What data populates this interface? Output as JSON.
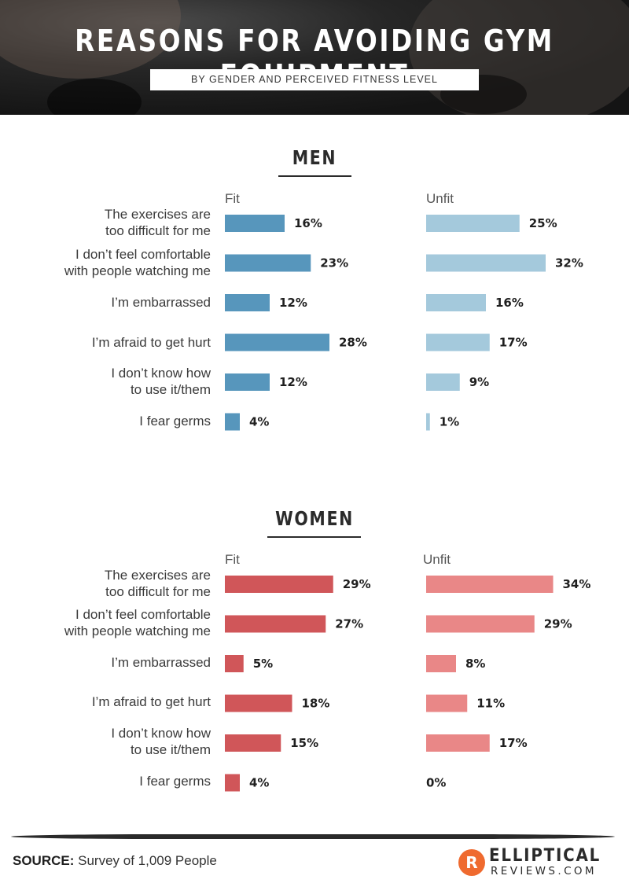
{
  "header": {
    "title": "REASONS FOR AVOIDING GYM EQUIPMENT",
    "subtitle": "BY GENDER AND PERCEIVED FITNESS LEVEL"
  },
  "colors": {
    "men_fit": "#5796bc",
    "men_unfit": "#a4c9dc",
    "women_fit": "#d05659",
    "women_unfit": "#e98787"
  },
  "chart_data": [
    {
      "type": "bar",
      "title": "MEN",
      "categories": [
        "The exercises are\ntoo difficult for me",
        "I don’t feel comfortable\nwith people watching me",
        "I’m embarrassed",
        "I’m afraid to get hurt",
        "I don’t know how\nto use it/them",
        "I fear germs"
      ],
      "series": [
        {
          "name": "Fit",
          "values": [
            16,
            23,
            12,
            28,
            12,
            4
          ],
          "labels": [
            "16%",
            "23%",
            "12%",
            "28%",
            "12%",
            "4%"
          ]
        },
        {
          "name": "Unfit",
          "values": [
            25,
            32,
            16,
            17,
            9,
            1
          ],
          "labels": [
            "25%",
            "32%",
            "16%",
            "17%",
            "9%",
            "1%"
          ]
        }
      ]
    },
    {
      "type": "bar",
      "title": "WOMEN",
      "categories": [
        "The exercises are\ntoo difficult for me",
        "I don’t feel comfortable\nwith people watching me",
        "I’m embarrassed",
        "I’m afraid to get hurt",
        "I don’t know how\nto use it/them",
        "I fear germs"
      ],
      "series": [
        {
          "name": "Fit",
          "values": [
            29,
            27,
            5,
            18,
            15,
            4
          ],
          "labels": [
            "29%",
            "27%",
            "5%",
            "18%",
            "15%",
            "4%"
          ]
        },
        {
          "name": "Unfit",
          "values": [
            34,
            29,
            8,
            11,
            17,
            0
          ],
          "labels": [
            "34%",
            "29%",
            "8%",
            "11%",
            "17%",
            "0%"
          ]
        }
      ]
    }
  ],
  "footer": {
    "source_label": "SOURCE:",
    "source_text": " Survey of 1,009 People",
    "logo_letter": "R",
    "logo_top": "ELLIPTICAL",
    "logo_bottom": "REVIEWS.COM"
  }
}
